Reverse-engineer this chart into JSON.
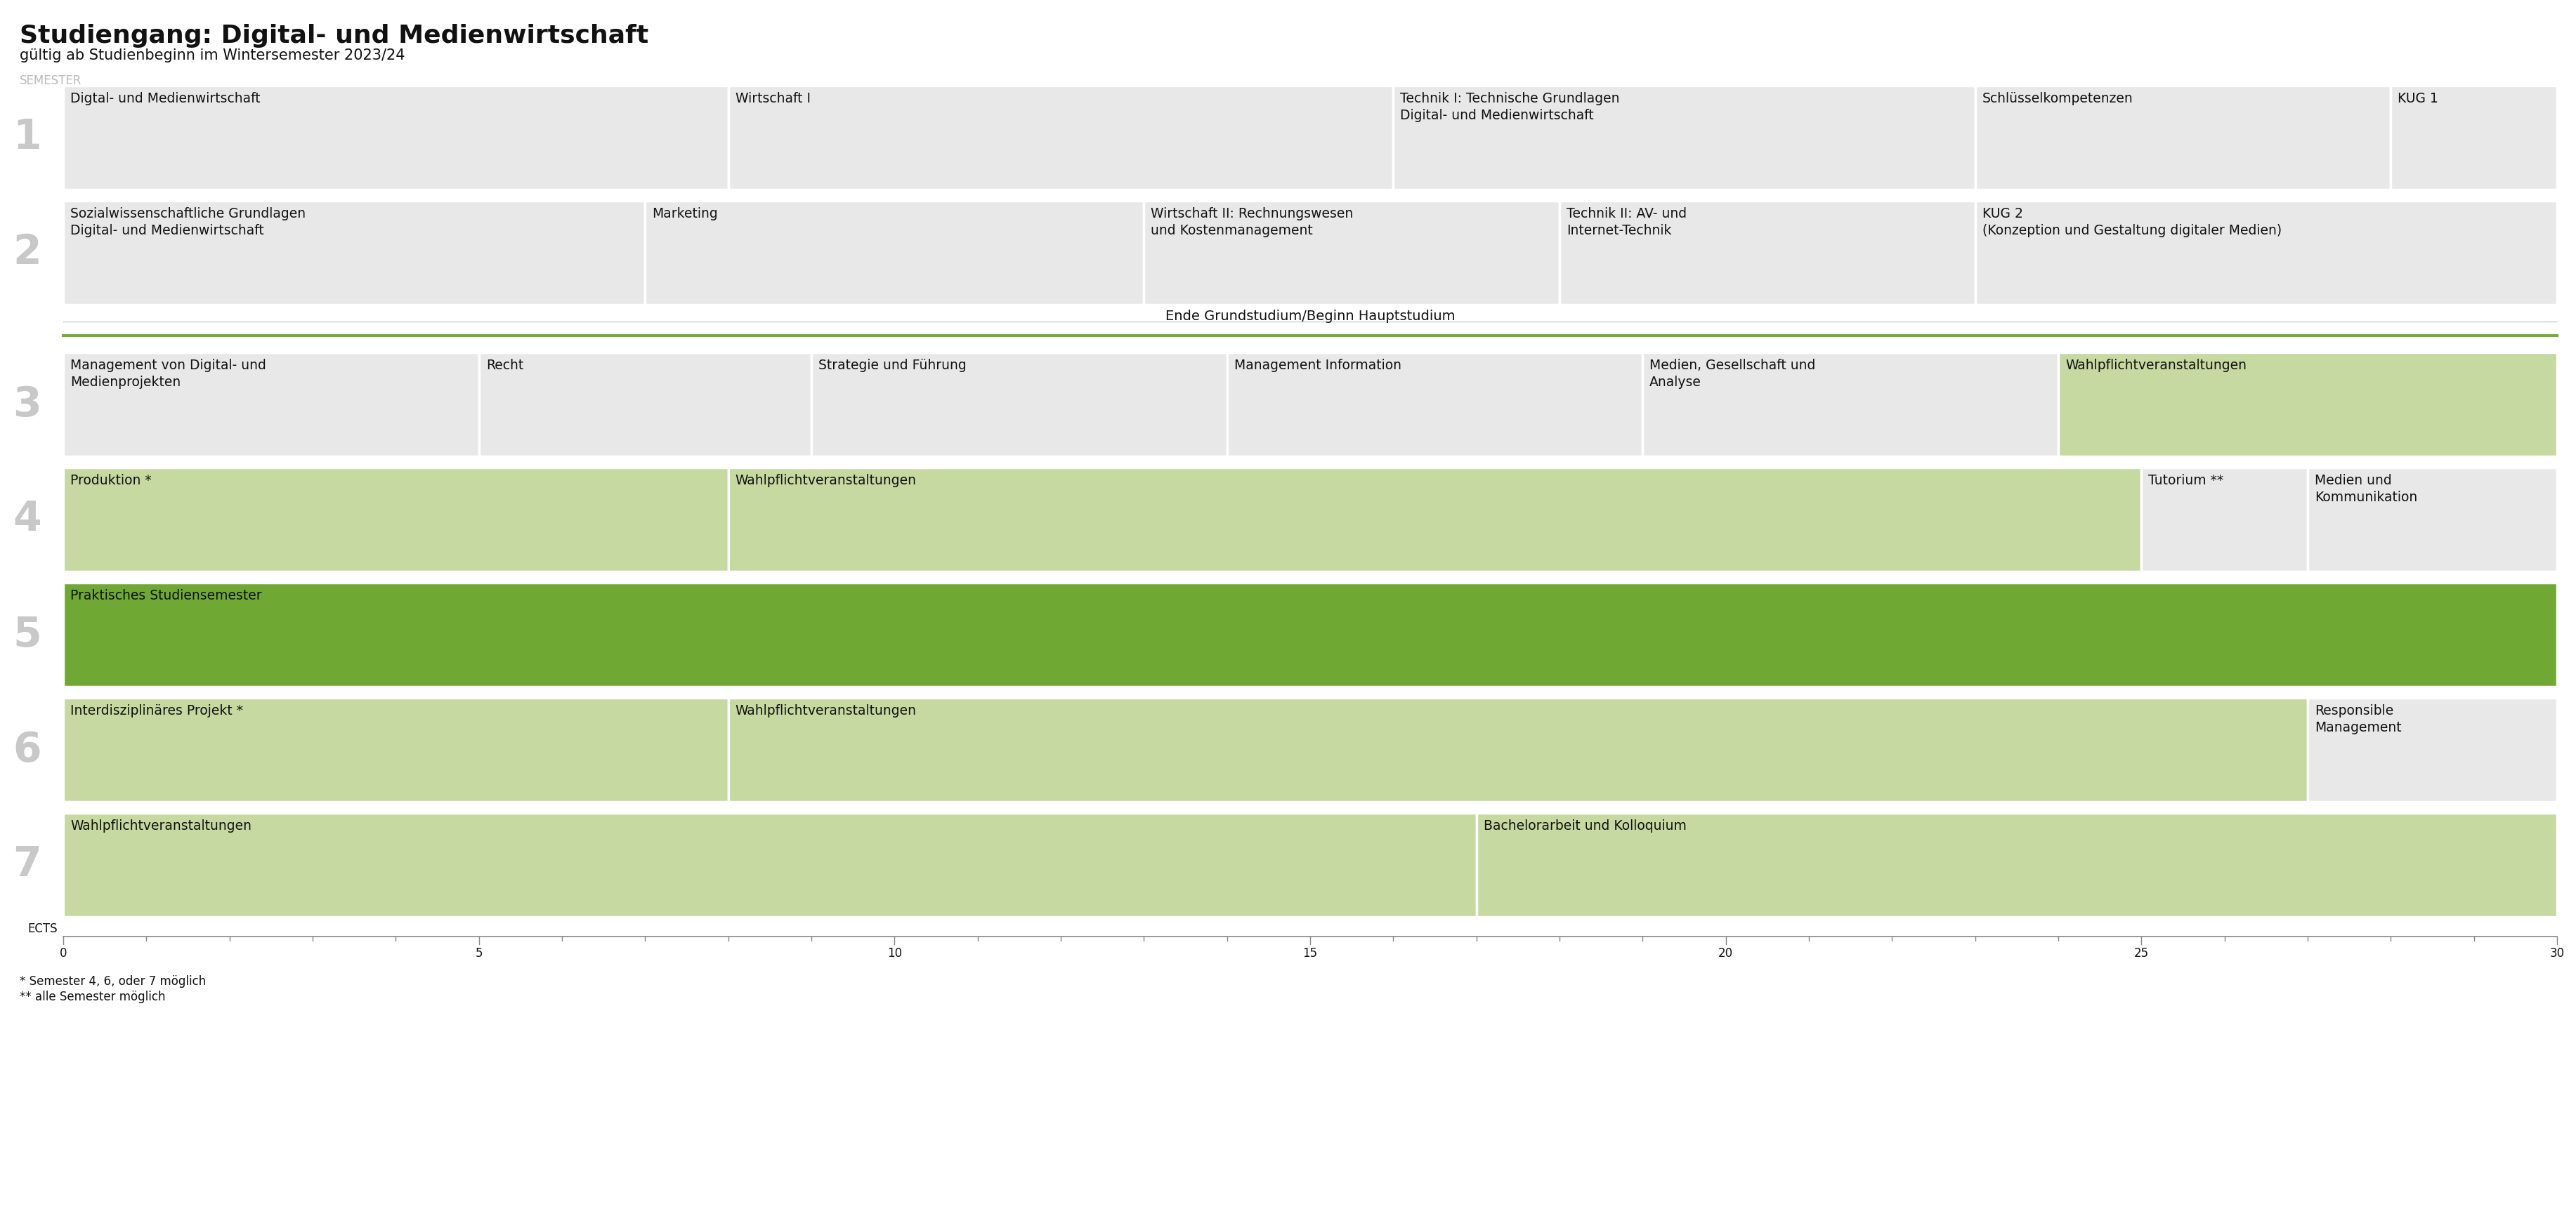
{
  "title": "Studiengang: Digital- und Medienwirtschaft",
  "subtitle": "gültig ab Studienbeginn im Wintersemester 2023/24",
  "semester_label": "SEMESTER",
  "ects_label": "ECTS",
  "footnote1": "* Semester 4, 6, oder 7 möglich",
  "footnote2": "** alle Semester möglich",
  "divider_label": "Ende Grundstudium/Beginn Hauptstudium",
  "color_light_gray": "#e8e8e8",
  "color_light_green": "#c5d9a0",
  "color_medium_green": "#6fa832",
  "color_white": "#ffffff",
  "color_black": "#111111",
  "color_gray_num": "#c8c8c8",
  "color_divider_line": "#7aaa3c",
  "color_axis": "#888888",
  "total_ects": 30,
  "semesters": [
    {
      "num": "1",
      "modules": [
        {
          "label": "Digtal- und Medienwirtschaft",
          "ects": 8,
          "type": "gray"
        },
        {
          "label": "Wirtschaft I",
          "ects": 8,
          "type": "gray"
        },
        {
          "label": "Technik I: Technische Grundlagen\nDigital- und Medienwirtschaft",
          "ects": 7,
          "type": "gray"
        },
        {
          "label": "Schlüsselkompetenzen",
          "ects": 5,
          "type": "gray"
        },
        {
          "label": "KUG 1",
          "ects": 2,
          "type": "gray"
        }
      ]
    },
    {
      "num": "2",
      "modules": [
        {
          "label": "Sozialwissenschaftliche Grundlagen\nDigital- und Medienwirtschaft",
          "ects": 7,
          "type": "gray"
        },
        {
          "label": "Marketing",
          "ects": 6,
          "type": "gray"
        },
        {
          "label": "Wirtschaft II: Rechnungswesen\nund Kostenmanagement",
          "ects": 5,
          "type": "gray"
        },
        {
          "label": "Technik II: AV- und\nInternet-Technik",
          "ects": 5,
          "type": "gray"
        },
        {
          "label": "KUG 2\n(Konzeption und Gestaltung digitaler Medien)",
          "ects": 7,
          "type": "gray"
        }
      ]
    },
    {
      "num": "3",
      "modules": [
        {
          "label": "Management von Digital- und\nMedienprojekten",
          "ects": 5,
          "type": "gray"
        },
        {
          "label": "Recht",
          "ects": 4,
          "type": "gray"
        },
        {
          "label": "Strategie und Führung",
          "ects": 5,
          "type": "gray"
        },
        {
          "label": "Management Information",
          "ects": 5,
          "type": "gray"
        },
        {
          "label": "Medien, Gesellschaft und\nAnalyse",
          "ects": 5,
          "type": "gray"
        },
        {
          "label": "Wahlpflichtveranstaltungen",
          "ects": 6,
          "type": "light_green"
        }
      ]
    },
    {
      "num": "4",
      "modules": [
        {
          "label": "Produktion *",
          "ects": 8,
          "type": "light_green"
        },
        {
          "label": "Wahlpflichtveranstaltungen",
          "ects": 17,
          "type": "light_green"
        },
        {
          "label": "Tutorium **",
          "ects": 2,
          "type": "gray"
        },
        {
          "label": "Medien und\nKommunikation",
          "ects": 3,
          "type": "gray"
        }
      ]
    },
    {
      "num": "5",
      "modules": [
        {
          "label": "Praktisches Studiensemester",
          "ects": 30,
          "type": "medium_green"
        }
      ]
    },
    {
      "num": "6",
      "modules": [
        {
          "label": "Interdisziplinäres Projekt *",
          "ects": 8,
          "type": "light_green"
        },
        {
          "label": "Wahlpflichtveranstaltungen",
          "ects": 19,
          "type": "light_green"
        },
        {
          "label": "Responsible\nManagement",
          "ects": 3,
          "type": "gray"
        }
      ]
    },
    {
      "num": "7",
      "modules": [
        {
          "label": "Wahlpflichtveranstaltungen",
          "ects": 17,
          "type": "light_green"
        },
        {
          "label": "Bachelorarbeit und Kolloquium",
          "ects": 13,
          "type": "light_green"
        }
      ]
    }
  ]
}
